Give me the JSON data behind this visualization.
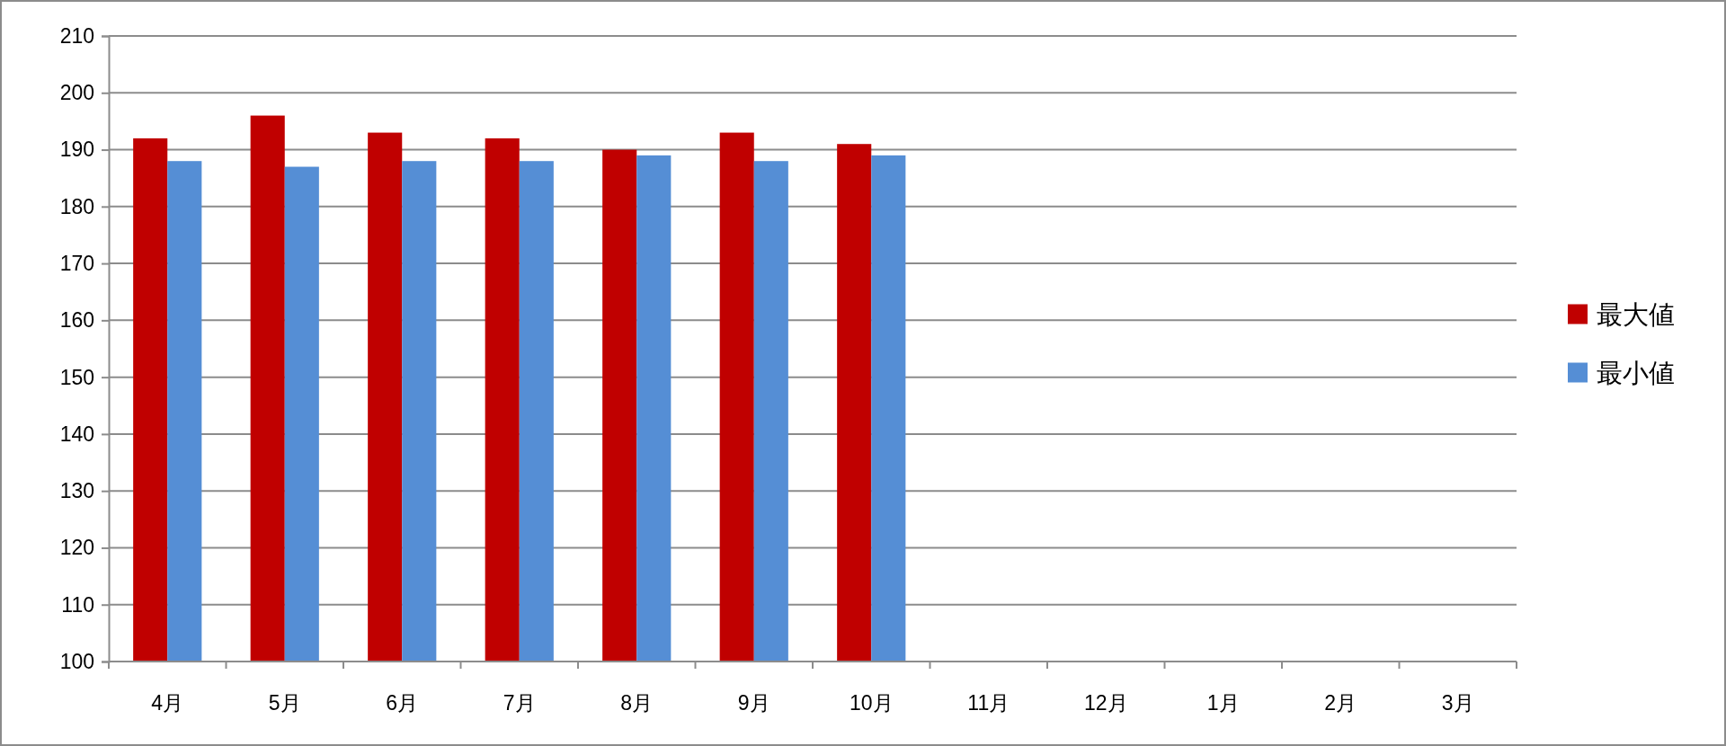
{
  "chart_data": {
    "type": "bar",
    "categories": [
      "4月",
      "5月",
      "6月",
      "7月",
      "8月",
      "9月",
      "10月",
      "11月",
      "12月",
      "1月",
      "2月",
      "3月"
    ],
    "series": [
      {
        "name": "最大値",
        "color": "#c00000",
        "values": [
          192,
          196,
          193,
          192,
          190,
          193,
          191,
          null,
          null,
          null,
          null,
          null
        ]
      },
      {
        "name": "最小値",
        "color": "#558ed5",
        "values": [
          188,
          187,
          188,
          188,
          189,
          188,
          189,
          null,
          null,
          null,
          null,
          null
        ]
      }
    ],
    "ylim": [
      100,
      210
    ],
    "yticks": [
      100,
      110,
      120,
      130,
      140,
      150,
      160,
      170,
      180,
      190,
      200,
      210
    ],
    "grid": "y",
    "legend": "right"
  }
}
